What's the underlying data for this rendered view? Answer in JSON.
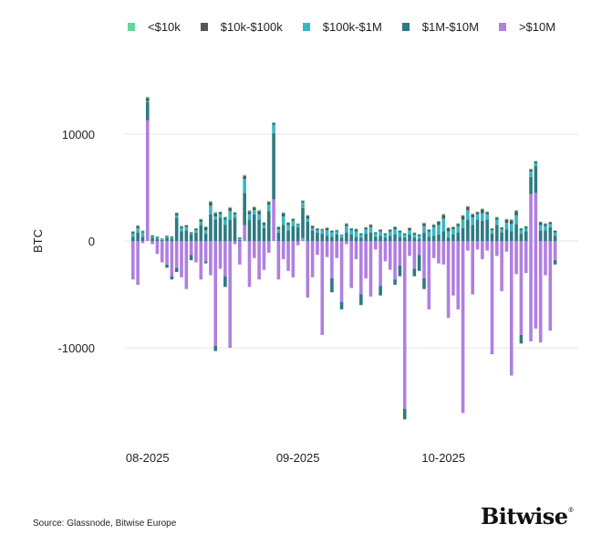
{
  "chart_data": {
    "type": "bar",
    "stacked": true,
    "title": "",
    "xlabel": "",
    "ylabel": "BTC",
    "ylim": [
      -19000,
      17500
    ],
    "yticks": [
      10000,
      0,
      -10000
    ],
    "ytick_labels": [
      "10000",
      "0",
      "-10000"
    ],
    "grid": true,
    "legend_position": "top",
    "xtick_labels": [
      {
        "label": "08-2025",
        "index": 3
      },
      {
        "label": "09-2025",
        "index": 34
      },
      {
        "label": "10-2025",
        "index": 64
      }
    ],
    "series": [
      {
        "name": "<$10k",
        "color": "#5fd99a",
        "pos": [
          80,
          90,
          70,
          100,
          60,
          50,
          40,
          50,
          60,
          80,
          70,
          60,
          50,
          70,
          80,
          90,
          100,
          120,
          60,
          80,
          90,
          60,
          50,
          100,
          90,
          80,
          100,
          70,
          90,
          60,
          80,
          100,
          70,
          60,
          50,
          60,
          80,
          70,
          60,
          50,
          80,
          60,
          50,
          40,
          80,
          60,
          70,
          50,
          60,
          70,
          50,
          60,
          50,
          60,
          70,
          60,
          50,
          70,
          60,
          50,
          80,
          60,
          70,
          90,
          100,
          80,
          60,
          70,
          90,
          80,
          80,
          60,
          100,
          70,
          60,
          70,
          60,
          80,
          90,
          100,
          60,
          60,
          80,
          60,
          80,
          70,
          60,
          60
        ],
        "neg": [
          0,
          0,
          0,
          0,
          0,
          0,
          0,
          0,
          0,
          0,
          0,
          0,
          0,
          0,
          0,
          0,
          0,
          0,
          0,
          0,
          0,
          0,
          0,
          0,
          0,
          0,
          0,
          0,
          0,
          0,
          0,
          0,
          0,
          0,
          0,
          0,
          0,
          0,
          0,
          0,
          0,
          0,
          0,
          0,
          0,
          0,
          0,
          0,
          0,
          0,
          0,
          0,
          0,
          0,
          0,
          0,
          0,
          0,
          0,
          0,
          0,
          0,
          0,
          0,
          0,
          0,
          0,
          0,
          0,
          0,
          0,
          0,
          0,
          0,
          0,
          0,
          0,
          0,
          0,
          0,
          0,
          0,
          0,
          0,
          0,
          0,
          0,
          0
        ]
      },
      {
        "name": "$10k-$100k",
        "color": "#555555",
        "pos": [
          150,
          200,
          120,
          300,
          100,
          80,
          60,
          80,
          100,
          200,
          150,
          160,
          100,
          150,
          200,
          300,
          350,
          300,
          200,
          200,
          300,
          150,
          100,
          300,
          300,
          250,
          300,
          200,
          250,
          150,
          200,
          300,
          200,
          150,
          100,
          150,
          250,
          200,
          150,
          100,
          200,
          150,
          100,
          80,
          200,
          150,
          200,
          100,
          150,
          200,
          100,
          150,
          100,
          150,
          200,
          150,
          100,
          200,
          150,
          100,
          250,
          150,
          200,
          300,
          350,
          300,
          200,
          200,
          350,
          300,
          300,
          200,
          350,
          200,
          150,
          200,
          150,
          300,
          350,
          400,
          150,
          150,
          200,
          150,
          250,
          200,
          150,
          150
        ],
        "neg": [
          0,
          0,
          0,
          0,
          0,
          0,
          0,
          0,
          0,
          0,
          0,
          0,
          0,
          0,
          0,
          0,
          0,
          0,
          0,
          0,
          0,
          0,
          0,
          0,
          0,
          0,
          0,
          0,
          0,
          0,
          0,
          0,
          0,
          0,
          0,
          0,
          0,
          0,
          0,
          0,
          0,
          0,
          0,
          0,
          0,
          0,
          0,
          0,
          0,
          0,
          0,
          0,
          0,
          0,
          0,
          0,
          0,
          0,
          0,
          0,
          0,
          0,
          0,
          0,
          0,
          0,
          0,
          0,
          0,
          0,
          0,
          0,
          0,
          0,
          0,
          0,
          0,
          0,
          0,
          0,
          0,
          0,
          0,
          0,
          0,
          0,
          0,
          0
        ]
      },
      {
        "name": "$100k-$1M",
        "color": "#35b8c6",
        "pos": [
          300,
          400,
          400,
          100,
          100,
          100,
          50,
          100,
          100,
          200,
          300,
          300,
          100,
          200,
          300,
          300,
          800,
          300,
          300,
          500,
          800,
          300,
          100,
          1300,
          500,
          400,
          500,
          300,
          600,
          800,
          300,
          800,
          500,
          500,
          200,
          500,
          300,
          200,
          200,
          300,
          500,
          400,
          300,
          200,
          600,
          400,
          500,
          300,
          400,
          500,
          300,
          400,
          300,
          400,
          500,
          400,
          300,
          400,
          300,
          300,
          600,
          500,
          800,
          900,
          1200,
          600,
          500,
          600,
          800,
          900,
          700,
          500,
          700,
          500,
          300,
          500,
          300,
          600,
          700,
          800,
          300,
          300,
          500,
          300,
          500,
          400,
          300,
          300
        ],
        "neg": [
          0,
          0,
          0,
          0,
          0,
          0,
          0,
          0,
          0,
          0,
          0,
          0,
          0,
          0,
          0,
          0,
          0,
          0,
          0,
          0,
          0,
          0,
          0,
          0,
          0,
          0,
          0,
          0,
          0,
          0,
          0,
          0,
          0,
          0,
          0,
          0,
          0,
          0,
          0,
          0,
          0,
          0,
          0,
          0,
          0,
          0,
          0,
          0,
          0,
          0,
          0,
          0,
          0,
          0,
          0,
          0,
          0,
          0,
          0,
          0,
          0,
          0,
          0,
          0,
          0,
          0,
          0,
          0,
          0,
          0,
          0,
          0,
          0,
          0,
          0,
          0,
          0,
          0,
          0,
          0,
          0,
          0,
          0,
          0,
          0,
          0,
          0,
          0
        ]
      },
      {
        "name": "$1M-$10M",
        "color": "#2d7a80",
        "pos": [
          400,
          800,
          400,
          1700,
          300,
          200,
          100,
          300,
          200,
          2200,
          900,
          1000,
          600,
          800,
          1500,
          700,
          2500,
          2000,
          2200,
          1500,
          2000,
          2200,
          100,
          3000,
          2000,
          2500,
          2000,
          1200,
          2800,
          6200,
          800,
          1500,
          1000,
          1400,
          1300,
          2800,
          1800,
          1000,
          800,
          700,
          500,
          400,
          600,
          300,
          800,
          600,
          400,
          300,
          700,
          800,
          400,
          500,
          300,
          500,
          600,
          400,
          300,
          600,
          300,
          200,
          800,
          400,
          500,
          600,
          900,
          300,
          600,
          800,
          1200,
          2000,
          1500,
          2000,
          1900,
          2000,
          700,
          1500,
          800,
          1100,
          900,
          1600,
          700,
          900,
          1600,
          2500,
          1000,
          1000,
          1300,
          500
        ],
        "neg": [
          0,
          0,
          0,
          0,
          0,
          0,
          0,
          300,
          300,
          400,
          0,
          0,
          500,
          0,
          0,
          200,
          0,
          500,
          0,
          1000,
          0,
          0,
          0,
          0,
          0,
          0,
          0,
          0,
          0,
          0,
          0,
          0,
          0,
          0,
          0,
          0,
          0,
          0,
          0,
          0,
          0,
          1300,
          0,
          700,
          0,
          0,
          0,
          1000,
          0,
          0,
          0,
          900,
          0,
          0,
          500,
          1000,
          1000,
          0,
          700,
          1500,
          1000,
          0,
          0,
          0,
          0,
          0,
          0,
          0,
          0,
          0,
          0,
          0,
          0,
          0,
          0,
          0,
          0,
          0,
          0,
          0,
          800,
          0,
          0,
          0,
          0,
          0,
          0,
          400
        ]
      },
      {
        "name": ">$10M",
        "color": "#b07fe0",
        "pos": [
          0,
          0,
          0,
          11300,
          0,
          0,
          0,
          0,
          0,
          0,
          0,
          0,
          0,
          0,
          0,
          0,
          0,
          0,
          0,
          0,
          0,
          0,
          0,
          1500,
          0,
          0,
          0,
          0,
          0,
          3900,
          0,
          0,
          0,
          0,
          0,
          300,
          0,
          0,
          0,
          0,
          0,
          0,
          0,
          0,
          0,
          0,
          0,
          0,
          0,
          0,
          0,
          0,
          0,
          0,
          0,
          0,
          0,
          0,
          0,
          0,
          0,
          0,
          0,
          0,
          0,
          0,
          0,
          0,
          0,
          0,
          0,
          0,
          0,
          0,
          0,
          0,
          0,
          0,
          0,
          0,
          0,
          0,
          4400,
          4500,
          0,
          0,
          0,
          0
        ],
        "neg": [
          -3600,
          -4100,
          -200,
          0,
          -300,
          -1200,
          -2000,
          -2200,
          -3300,
          -2500,
          -3400,
          -4500,
          -1300,
          -2000,
          -3600,
          -1900,
          -3200,
          -9800,
          -2600,
          -3300,
          -10000,
          -300,
          -2200,
          0,
          -4300,
          -1600,
          -3600,
          -2700,
          -1100,
          0,
          -3600,
          -1700,
          -2800,
          -3400,
          -400,
          0,
          -5300,
          -3400,
          -1300,
          -8800,
          -1500,
          -3500,
          -1600,
          -5700,
          -300,
          -4400,
          -1700,
          -5000,
          -3500,
          -5200,
          -800,
          -4200,
          -1900,
          -2700,
          -3600,
          -2300,
          -15700,
          -1400,
          -2600,
          -1300,
          -3500,
          -6400,
          -1600,
          -2100,
          -2200,
          -7200,
          -5100,
          -6400,
          -16100,
          -900,
          -5000,
          -800,
          -1700,
          -900,
          -10600,
          -1400,
          -4700,
          -1000,
          -12600,
          -3100,
          -8800,
          -3000,
          -9400,
          -8200,
          -9500,
          -3200,
          -8400,
          -1800
        ]
      }
    ]
  },
  "legend": {
    "items": [
      {
        "label": "<$10k",
        "color": "#5fd99a"
      },
      {
        "label": "$10k-$100k",
        "color": "#555555"
      },
      {
        "label": "$100k-$1M",
        "color": "#35b8c6"
      },
      {
        "label": "$1M-$10M",
        "color": "#2d7a80"
      },
      {
        "label": ">$10M",
        "color": "#b07fe0"
      }
    ]
  },
  "footer": {
    "source": "Source: Glassnode, Bitwise Europe",
    "logo": "Bitwise",
    "logo_mark": "®"
  }
}
